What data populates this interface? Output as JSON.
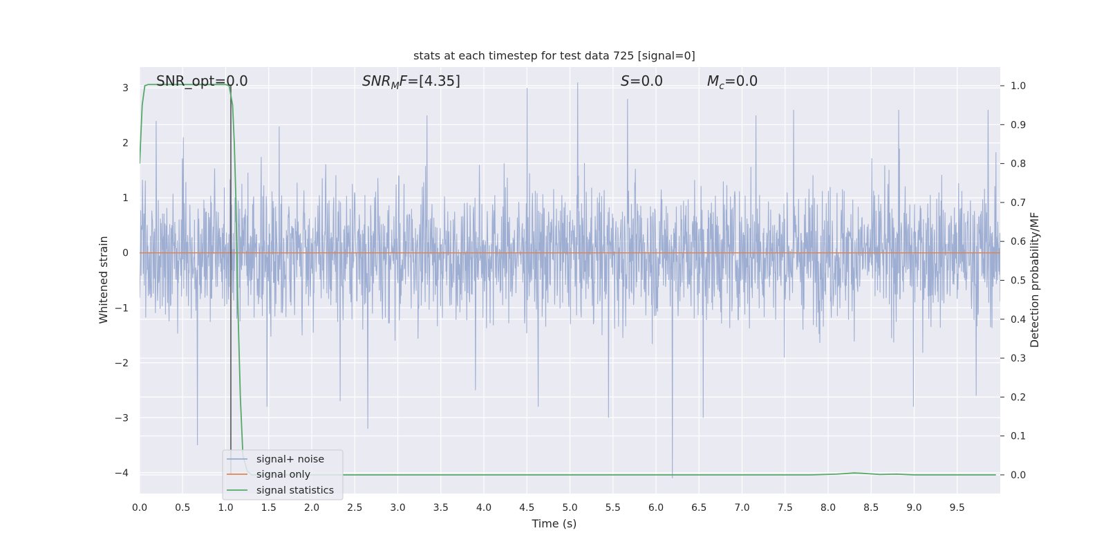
{
  "chart_data": {
    "type": "line",
    "title": "stats at each timestep for test data 725 [signal=0]",
    "xlabel": "Time (s)",
    "ylabel_left": "Whitened strain",
    "ylabel_right": "Detection probability/MF",
    "xlim": [
      0,
      10
    ],
    "ylim_left": [
      -4.38,
      3.38
    ],
    "ylim_right": [
      -0.048,
      1.048
    ],
    "x_ticks": [
      "0.0",
      "0.5",
      "1.0",
      "1.5",
      "2.0",
      "2.5",
      "3.0",
      "3.5",
      "4.0",
      "4.5",
      "5.0",
      "5.5",
      "6.0",
      "6.5",
      "7.0",
      "7.5",
      "8.0",
      "8.5",
      "9.0",
      "9.5"
    ],
    "y_ticks_left": [
      "3",
      "2",
      "1",
      "0",
      "−1",
      "−2",
      "−3",
      "−4"
    ],
    "y_ticks_right": [
      "1.0",
      "0.9",
      "0.8",
      "0.7",
      "0.6",
      "0.5",
      "0.4",
      "0.3",
      "0.2",
      "0.1",
      "0.0"
    ],
    "grid": true,
    "legend_position": "lower-left",
    "colors": {
      "background": "#eaeaf2",
      "grid": "#ffffff",
      "noise": "#9aabd0",
      "signal_only": "#dd8452",
      "statistics": "#55a868",
      "marker": "#4a4a4a"
    },
    "annotations": {
      "snr_opt": "SNR_opt=0.0",
      "snr_mf": "[4.35]",
      "s": "S=0.0",
      "mc": "=0.0"
    },
    "series": [
      {
        "name": "signal+ noise",
        "axis": "left",
        "description": "whitened noise, approx. mean 0, envelope about ±1.5 with spikes",
        "spikes": [
          {
            "x": 0.67,
            "y": -3.5
          },
          {
            "x": 0.19,
            "y": 2.4
          },
          {
            "x": 0.51,
            "y": 2.1
          },
          {
            "x": 1.48,
            "y": -2.8
          },
          {
            "x": 1.62,
            "y": 2.3
          },
          {
            "x": 2.33,
            "y": -2.7
          },
          {
            "x": 2.65,
            "y": -3.2
          },
          {
            "x": 3.34,
            "y": 2.5
          },
          {
            "x": 3.9,
            "y": -2.5
          },
          {
            "x": 4.5,
            "y": 3.0
          },
          {
            "x": 4.63,
            "y": -2.8
          },
          {
            "x": 5.09,
            "y": 3.1
          },
          {
            "x": 5.45,
            "y": -3.0
          },
          {
            "x": 5.67,
            "y": 2.8
          },
          {
            "x": 6.19,
            "y": -4.1
          },
          {
            "x": 6.55,
            "y": -3.0
          },
          {
            "x": 7.16,
            "y": 2.5
          },
          {
            "x": 7.6,
            "y": 2.6
          },
          {
            "x": 8.82,
            "y": 2.6
          },
          {
            "x": 8.99,
            "y": -2.8
          },
          {
            "x": 9.86,
            "y": 2.6
          },
          {
            "x": 9.72,
            "y": -2.6
          }
        ]
      },
      {
        "name": "signal only",
        "axis": "left",
        "x": [
          0,
          10
        ],
        "y": [
          0,
          0
        ]
      },
      {
        "name": "signal statistics",
        "axis": "right",
        "x": [
          0.0,
          0.03,
          0.06,
          0.1,
          0.2,
          0.5,
          0.8,
          1.0,
          1.04,
          1.08,
          1.1,
          1.12,
          1.14,
          1.17,
          1.2,
          1.25,
          1.3,
          2.0,
          4.0,
          6.0,
          7.0,
          7.8,
          8.1,
          8.3,
          8.4,
          8.6,
          8.8,
          9.0,
          9.5,
          9.95
        ],
        "y": [
          0.8,
          0.95,
          1.0,
          1.003,
          1.003,
          1.003,
          1.003,
          1.003,
          1.0,
          0.95,
          0.85,
          0.7,
          0.45,
          0.2,
          0.05,
          0.01,
          0.0,
          0.0,
          0.0,
          0.0,
          0.0,
          0.0,
          0.002,
          0.005,
          0.004,
          0.001,
          0.002,
          0.0,
          0.0,
          0.0
        ]
      }
    ],
    "marker_x": 1.06
  }
}
